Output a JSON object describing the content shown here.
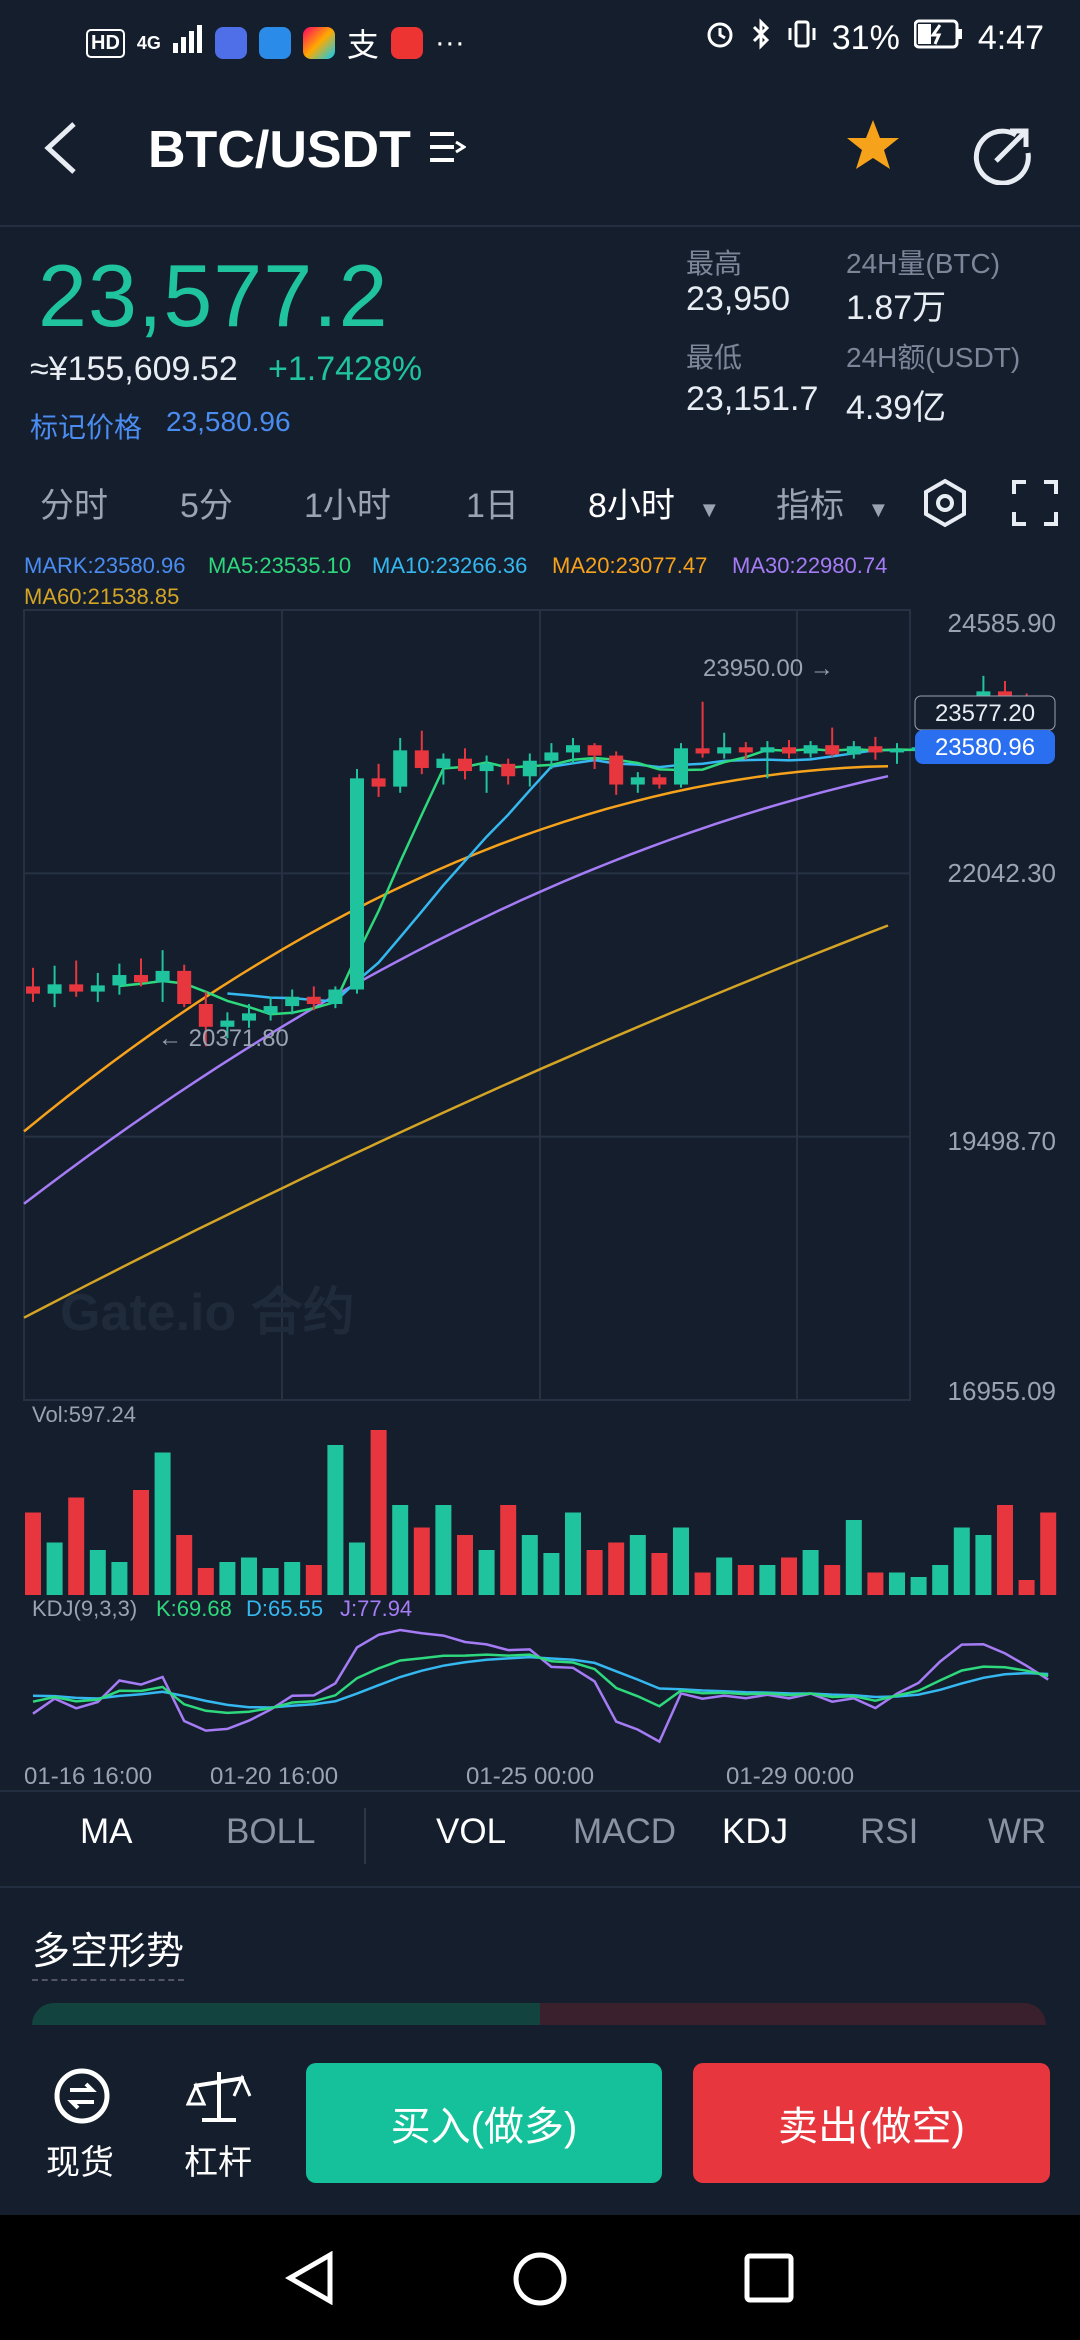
{
  "status_bar": {
    "badge": "HD",
    "network": "4G",
    "pay_app_glyph": "支",
    "more": "···",
    "battery": "31%",
    "time": "4:47"
  },
  "header": {
    "pair": "BTC/USDT",
    "back_icon": "chevron-left-icon",
    "menu_icon": "list-icon",
    "favorite_icon": "star-icon",
    "share_icon": "share-icon",
    "favorite_color": "#f7a21b"
  },
  "ticker": {
    "last_price": "23,577.2",
    "cny_price": "≈¥155,609.52",
    "change_pct": "+1.7428%",
    "mark_label": "标记价格",
    "mark_price": "23,580.96",
    "high_label": "最高",
    "high_value": "23,950",
    "low_label": "最低",
    "low_value": "23,151.7",
    "vol_label": "24H量(BTC)",
    "vol_value": "1.87万",
    "amount_label": "24H额(USDT)",
    "amount_value": "4.39亿",
    "up_color": "#1fc39e",
    "down_color": "#e8363f"
  },
  "timeframes": {
    "items": [
      "分时",
      "5分",
      "1小时",
      "1日"
    ],
    "active": "8小时",
    "indicator": "指标",
    "settings_icon": "hexagon-gear-icon",
    "fullscreen_icon": "fullscreen-icon"
  },
  "legend": {
    "mark": "MARK:23580.96",
    "ma5": "MA5:23535.10",
    "ma10": "MA10:23266.36",
    "ma20": "MA20:23077.47",
    "ma30": "MA30:22980.74",
    "ma60": "MA60:21538.85"
  },
  "price_axis": [
    "24585.90",
    "22042.30",
    "19498.70",
    "16955.09"
  ],
  "chart_labels": {
    "high_marker": "23950.00 →",
    "low_marker": "← 20371.80",
    "last_tag": "23577.20",
    "mark_tag": "23580.96",
    "watermark": "Gate.io 合约",
    "vol_label": "Vol:597.24",
    "kdj_label": "KDJ(9,3,3)",
    "kdj_k": "K:69.68",
    "kdj_d": "D:65.55",
    "kdj_j": "J:77.94"
  },
  "time_axis": [
    "01-16 16:00",
    "01-20 16:00",
    "01-25 00:00",
    "01-29 00:00"
  ],
  "chart_data": {
    "type": "candlestick",
    "interval": "8小时",
    "y_axis_ticks": [
      24585.9,
      22042.3,
      19498.7,
      16955.09
    ],
    "ylim": [
      16955.09,
      24585.9
    ],
    "x_ticks": [
      "01-16 16:00",
      "01-20 16:00",
      "01-25 00:00",
      "01-29 00:00"
    ],
    "high_marker": 23950.0,
    "low_marker": 20371.8,
    "last_price": 23577.2,
    "mark_price": 23580.96,
    "ma_latest": {
      "MA5": 23535.1,
      "MA10": 23266.36,
      "MA20": 23077.47,
      "MA30": 22980.74,
      "MA60": 21538.85
    },
    "candles": [
      {
        "o": 20950,
        "h": 21130,
        "l": 20800,
        "c": 20880
      },
      {
        "o": 20880,
        "h": 21150,
        "l": 20750,
        "c": 20970
      },
      {
        "o": 20970,
        "h": 21200,
        "l": 20850,
        "c": 20900
      },
      {
        "o": 20900,
        "h": 21080,
        "l": 20800,
        "c": 20960
      },
      {
        "o": 20960,
        "h": 21170,
        "l": 20870,
        "c": 21060
      },
      {
        "o": 21060,
        "h": 21220,
        "l": 20950,
        "c": 20990
      },
      {
        "o": 20990,
        "h": 21300,
        "l": 20800,
        "c": 21100
      },
      {
        "o": 21100,
        "h": 21160,
        "l": 20750,
        "c": 20780
      },
      {
        "o": 20780,
        "h": 20900,
        "l": 20371.8,
        "c": 20560
      },
      {
        "o": 20560,
        "h": 20700,
        "l": 20450,
        "c": 20620
      },
      {
        "o": 20620,
        "h": 20780,
        "l": 20550,
        "c": 20690
      },
      {
        "o": 20690,
        "h": 20850,
        "l": 20620,
        "c": 20760
      },
      {
        "o": 20760,
        "h": 20920,
        "l": 20680,
        "c": 20850
      },
      {
        "o": 20850,
        "h": 20950,
        "l": 20720,
        "c": 20780
      },
      {
        "o": 20780,
        "h": 20950,
        "l": 20740,
        "c": 20920
      },
      {
        "o": 20920,
        "h": 23050,
        "l": 20880,
        "c": 22960
      },
      {
        "o": 22960,
        "h": 23100,
        "l": 22780,
        "c": 22880
      },
      {
        "o": 22880,
        "h": 23350,
        "l": 22820,
        "c": 23230
      },
      {
        "o": 23230,
        "h": 23420,
        "l": 23000,
        "c": 23060
      },
      {
        "o": 23060,
        "h": 23200,
        "l": 22900,
        "c": 23150
      },
      {
        "o": 23150,
        "h": 23250,
        "l": 22950,
        "c": 23030
      },
      {
        "o": 23030,
        "h": 23180,
        "l": 22820,
        "c": 23100
      },
      {
        "o": 23100,
        "h": 23150,
        "l": 22900,
        "c": 22980
      },
      {
        "o": 22980,
        "h": 23200,
        "l": 22880,
        "c": 23130
      },
      {
        "o": 23130,
        "h": 23300,
        "l": 23050,
        "c": 23210
      },
      {
        "o": 23210,
        "h": 23350,
        "l": 23100,
        "c": 23280
      },
      {
        "o": 23280,
        "h": 23300,
        "l": 23050,
        "c": 23180
      },
      {
        "o": 23180,
        "h": 23220,
        "l": 22800,
        "c": 22900
      },
      {
        "o": 22900,
        "h": 23020,
        "l": 22820,
        "c": 22970
      },
      {
        "o": 22970,
        "h": 23000,
        "l": 22860,
        "c": 22900
      },
      {
        "o": 22900,
        "h": 23300,
        "l": 22870,
        "c": 23250
      },
      {
        "o": 23250,
        "h": 23700,
        "l": 23160,
        "c": 23200
      },
      {
        "o": 23200,
        "h": 23400,
        "l": 23150,
        "c": 23260
      },
      {
        "o": 23260,
        "h": 23310,
        "l": 23140,
        "c": 23210
      },
      {
        "o": 23210,
        "h": 23320,
        "l": 22960,
        "c": 23260
      },
      {
        "o": 23260,
        "h": 23330,
        "l": 23150,
        "c": 23200
      },
      {
        "o": 23200,
        "h": 23320,
        "l": 23160,
        "c": 23280
      },
      {
        "o": 23280,
        "h": 23450,
        "l": 23170,
        "c": 23190
      },
      {
        "o": 23190,
        "h": 23320,
        "l": 23150,
        "c": 23270
      },
      {
        "o": 23270,
        "h": 23360,
        "l": 23140,
        "c": 23210
      },
      {
        "o": 23210,
        "h": 23300,
        "l": 23100,
        "c": 23240
      },
      {
        "o": 23240,
        "h": 23350,
        "l": 23160,
        "c": 23260
      },
      {
        "o": 23260,
        "h": 23500,
        "l": 23220,
        "c": 23400
      },
      {
        "o": 23400,
        "h": 23720,
        "l": 23350,
        "c": 23660
      },
      {
        "o": 23660,
        "h": 23950,
        "l": 23600,
        "c": 23800
      },
      {
        "o": 23800,
        "h": 23900,
        "l": 23650,
        "c": 23720
      },
      {
        "o": 23720,
        "h": 23780,
        "l": 23580,
        "c": 23650
      },
      {
        "o": 23650,
        "h": 23700,
        "l": 23500,
        "c": 23577.2
      }
    ],
    "volume": [
      55,
      35,
      65,
      30,
      22,
      70,
      95,
      40,
      18,
      22,
      25,
      18,
      22,
      20,
      100,
      35,
      110,
      60,
      45,
      60,
      40,
      30,
      60,
      40,
      28,
      55,
      30,
      35,
      40,
      28,
      45,
      15,
      25,
      20,
      20,
      25,
      30,
      20,
      50,
      15,
      15,
      12,
      20,
      45,
      40,
      60,
      10,
      55
    ],
    "ylabel": ""
  },
  "indicator_tabs": {
    "main": [
      "MA",
      "BOLL"
    ],
    "sub": [
      "VOL",
      "MACD",
      "KDJ",
      "RSI",
      "WR"
    ],
    "active_main": "MA",
    "active_sub": [
      "VOL",
      "KDJ"
    ]
  },
  "section_title": "多空形势",
  "bottom_bar": {
    "spot_label": "现货",
    "spot_icon": "spot-exchange-icon",
    "leverage_label": "杠杆",
    "leverage_icon": "balance-scale-icon",
    "buy_label": "买入(做多)",
    "sell_label": "卖出(做空)"
  },
  "nav": {
    "back_icon": "triangle-back-icon",
    "home_icon": "circle-home-icon",
    "recents_icon": "square-recents-icon"
  }
}
